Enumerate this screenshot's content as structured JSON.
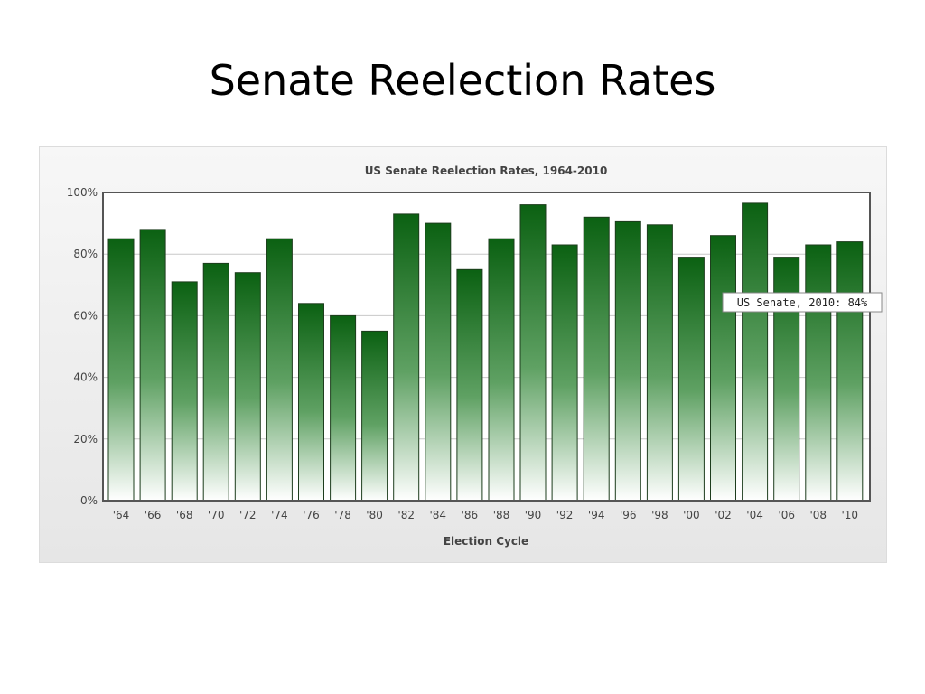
{
  "slide": {
    "title": "Senate Reelection Rates"
  },
  "colors": {
    "bar_top": "#0b6112",
    "bar_bottom": "#ffffff",
    "bar_stroke": "#1d3d1d",
    "grid": "#c8c8c8"
  },
  "chart_data": {
    "type": "bar",
    "title": "US Senate Reelection Rates, 1964-2010",
    "xlabel": "Election Cycle",
    "ylabel": "",
    "ylim": [
      0,
      100
    ],
    "yticks": [
      "0%",
      "20%",
      "40%",
      "60%",
      "80%",
      "100%"
    ],
    "ytick_values": [
      0,
      20,
      40,
      60,
      80,
      100
    ],
    "grid": true,
    "categories": [
      "'64",
      "'66",
      "'68",
      "'70",
      "'72",
      "'74",
      "'76",
      "'78",
      "'80",
      "'82",
      "'84",
      "'86",
      "'88",
      "'90",
      "'92",
      "'94",
      "'96",
      "'98",
      "'00",
      "'02",
      "'04",
      "'06",
      "'08",
      "'10"
    ],
    "series": [
      {
        "name": "US Senate",
        "values": [
          85,
          88,
          71,
          77,
          74,
          85,
          64,
          60,
          55,
          93,
          90,
          75,
          85,
          96,
          83,
          92,
          90.5,
          89.5,
          79,
          86,
          96.5,
          79,
          83,
          84
        ]
      }
    ],
    "tooltip": {
      "text": "US Senate, 2010: 84%",
      "category_index": 23
    }
  }
}
